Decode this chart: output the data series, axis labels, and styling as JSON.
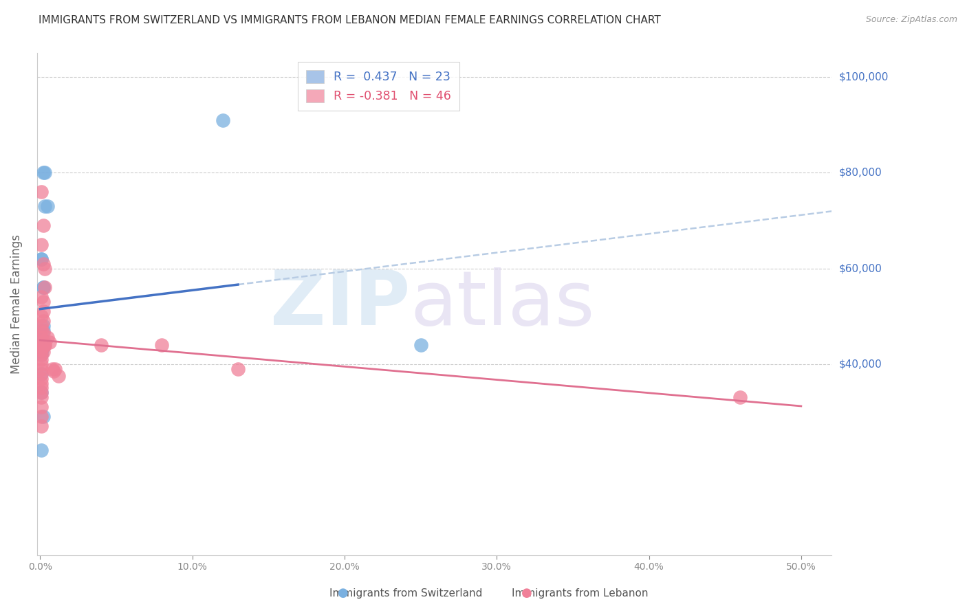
{
  "title": "IMMIGRANTS FROM SWITZERLAND VS IMMIGRANTS FROM LEBANON MEDIAN FEMALE EARNINGS CORRELATION CHART",
  "source": "Source: ZipAtlas.com",
  "ylabel": "Median Female Earnings",
  "ylim": [
    0,
    105000
  ],
  "xlim": [
    -0.002,
    0.52
  ],
  "watermark_zip": "ZIP",
  "watermark_atlas": "atlas",
  "switzerland_color": "#7ab0e0",
  "lebanon_color": "#f08098",
  "blue_line_color": "#4472c4",
  "pink_line_color": "#e07090",
  "dash_line_color": "#b8cce4",
  "background_color": "#ffffff",
  "grid_color": "#cccccc",
  "title_color": "#333333",
  "right_axis_color": "#4472c4",
  "title_fontsize": 11,
  "source_fontsize": 9,
  "legend_R1": "R =  0.437",
  "legend_N1": "N = 23",
  "legend_R2": "R = -0.381",
  "legend_N2": "N = 46",
  "legend_color1": "#4472c4",
  "legend_color2": "#e05070",
  "legend_patch_color1": "#a8c4e8",
  "legend_patch_color2": "#f4a8b8",
  "swiss_x": [
    0.002,
    0.003,
    0.003,
    0.005,
    0.001,
    0.002,
    0.002,
    0.001,
    0.002,
    0.002,
    0.001,
    0.002,
    0.001,
    0.002,
    0.001,
    0.001,
    0.001,
    0.001,
    0.001,
    0.002,
    0.001,
    0.12,
    0.25
  ],
  "swiss_y": [
    80000,
    80000,
    73000,
    73000,
    62000,
    56000,
    56000,
    62000,
    48000,
    47000,
    45500,
    45000,
    44000,
    43500,
    43000,
    42500,
    42000,
    38000,
    34000,
    29000,
    22000,
    91000,
    44000
  ],
  "leb_x": [
    0.001,
    0.002,
    0.001,
    0.002,
    0.003,
    0.003,
    0.001,
    0.002,
    0.002,
    0.001,
    0.002,
    0.001,
    0.001,
    0.002,
    0.001,
    0.001,
    0.002,
    0.003,
    0.001,
    0.001,
    0.002,
    0.001,
    0.001,
    0.001,
    0.001,
    0.001,
    0.001,
    0.001,
    0.001,
    0.001,
    0.001,
    0.001,
    0.001,
    0.001,
    0.002,
    0.003,
    0.005,
    0.006,
    0.008,
    0.009,
    0.01,
    0.012,
    0.04,
    0.08,
    0.13,
    0.46
  ],
  "leb_y": [
    76000,
    69000,
    65000,
    61000,
    60000,
    56000,
    54000,
    53000,
    51000,
    50000,
    49000,
    48000,
    47000,
    46500,
    45500,
    44500,
    44000,
    44000,
    43500,
    43000,
    42500,
    42000,
    41000,
    40000,
    39000,
    38000,
    37000,
    36000,
    35000,
    34000,
    33000,
    31000,
    29000,
    27000,
    44500,
    44000,
    45500,
    44500,
    39000,
    38500,
    39000,
    37500,
    44000,
    44000,
    39000,
    33000
  ],
  "xticks": [
    0.0,
    0.1,
    0.2,
    0.3,
    0.4,
    0.5
  ],
  "xtick_labels": [
    "0.0%",
    "10.0%",
    "20.0%",
    "30.0%",
    "40.0%",
    "50.0%"
  ],
  "yticks_right": [
    40000,
    60000,
    80000,
    100000
  ],
  "ytick_right_labels": [
    "$40,000",
    "$60,000",
    "$80,000",
    "$100,000"
  ]
}
